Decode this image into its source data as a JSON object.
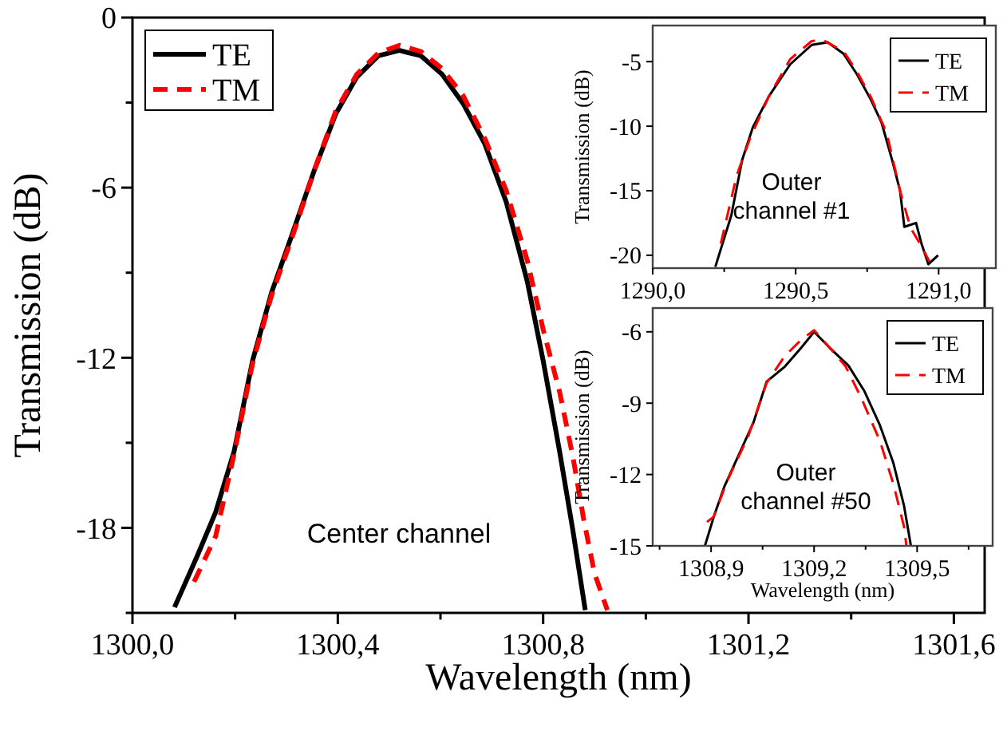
{
  "chart_data": [
    {
      "type": "line",
      "xlabel": "Wavelength (nm)",
      "ylabel": "Transmission (dB)",
      "xlim": [
        1300.0,
        1301.66
      ],
      "ylim": [
        -21,
        0
      ],
      "xticks": [
        {
          "value": 1300.0,
          "label": "1300,0"
        },
        {
          "value": 1300.2,
          "label": null
        },
        {
          "value": 1300.4,
          "label": "1300,4"
        },
        {
          "value": 1300.6,
          "label": null
        },
        {
          "value": 1300.8,
          "label": "1300,8"
        },
        {
          "value": 1301.0,
          "label": null
        },
        {
          "value": 1301.2,
          "label": "1301,2"
        },
        {
          "value": 1301.4,
          "label": null
        },
        {
          "value": 1301.6,
          "label": "1301,6"
        }
      ],
      "yticks": [
        0,
        {
          "value": -3,
          "label": null
        },
        -6,
        {
          "value": -9,
          "label": null
        },
        -12,
        {
          "value": -15,
          "label": null
        },
        -18,
        {
          "value": -21,
          "label": null
        }
      ],
      "legend": "top left",
      "annotations": [
        "Center channel"
      ],
      "series": [
        {
          "name": "TE",
          "color": "#000000",
          "line_style": "solid",
          "x": [
            1300.082,
            1300.126,
            1300.162,
            1300.198,
            1300.234,
            1300.271,
            1300.312,
            1300.354,
            1300.396,
            1300.437,
            1300.479,
            1300.52,
            1300.562,
            1300.603,
            1300.644,
            1300.686,
            1300.728,
            1300.769,
            1300.8,
            1300.832,
            1300.858,
            1300.882
          ],
          "values": [
            -20.8,
            -19.0,
            -17.45,
            -15.3,
            -12.1,
            -9.7,
            -7.6,
            -5.4,
            -3.4,
            -2.1,
            -1.35,
            -1.16,
            -1.35,
            -2.0,
            -3.03,
            -4.44,
            -6.5,
            -9.3,
            -12.1,
            -15.3,
            -18.1,
            -20.9
          ]
        },
        {
          "name": "TM",
          "color": "#ff0000",
          "line_style": "dashed",
          "x": [
            1300.12,
            1300.162,
            1300.198,
            1300.234,
            1300.271,
            1300.312,
            1300.354,
            1300.396,
            1300.437,
            1300.479,
            1300.52,
            1300.562,
            1300.603,
            1300.644,
            1300.686,
            1300.728,
            1300.769,
            1300.8,
            1300.832,
            1300.858,
            1300.879,
            1300.9,
            1300.925
          ],
          "values": [
            -19.9,
            -18.3,
            -15.4,
            -12.2,
            -9.8,
            -7.7,
            -5.4,
            -3.3,
            -2.0,
            -1.25,
            -0.98,
            -1.2,
            -1.8,
            -2.75,
            -4.25,
            -6.1,
            -8.56,
            -11.0,
            -13.2,
            -15.5,
            -17.7,
            -19.6,
            -20.9
          ]
        }
      ]
    },
    {
      "type": "line",
      "ylabel": "Transmission (dB)",
      "xlim": [
        1290.0,
        1291.2
      ],
      "ylim": [
        -21,
        -2.2
      ],
      "xticks": [
        {
          "value": 1290.0,
          "label": "1290,0"
        },
        {
          "value": 1290.25,
          "label": null
        },
        {
          "value": 1290.5,
          "label": "1290,5"
        },
        {
          "value": 1290.75,
          "label": null
        },
        {
          "value": 1291.0,
          "label": "1291,0"
        }
      ],
      "yticks": [
        -5,
        -10,
        -15,
        -20
      ],
      "legend": "top right",
      "annotations": [
        "Outer\nchannel #1"
      ],
      "series": [
        {
          "name": "TE",
          "color": "#000000",
          "line_style": "solid",
          "x": [
            1290.219,
            1290.275,
            1290.313,
            1290.35,
            1290.406,
            1290.481,
            1290.556,
            1290.612,
            1290.668,
            1290.715,
            1290.762,
            1290.8,
            1290.837,
            1290.865,
            1290.88,
            1290.921,
            1290.94,
            1290.964,
            1290.998
          ],
          "values": [
            -20.9,
            -16.9,
            -12.6,
            -10.1,
            -7.7,
            -5.2,
            -3.7,
            -3.5,
            -4.4,
            -6.0,
            -7.9,
            -9.7,
            -12.6,
            -15.0,
            -17.8,
            -17.5,
            -19.1,
            -20.7,
            -20.0
          ]
        },
        {
          "name": "TM",
          "color": "#ff0000",
          "line_style": "dashed",
          "x": [
            1290.238,
            1290.294,
            1290.341,
            1290.406,
            1290.481,
            1290.556,
            1290.593,
            1290.668,
            1290.715,
            1290.762,
            1290.818,
            1290.865,
            1290.902,
            1290.94,
            1290.968
          ],
          "values": [
            -19.1,
            -13.8,
            -10.9,
            -7.7,
            -4.8,
            -3.4,
            -3.3,
            -4.2,
            -5.8,
            -7.7,
            -10.5,
            -15.0,
            -17.9,
            -19.3,
            -20.5
          ]
        }
      ]
    },
    {
      "type": "line",
      "xlabel": "Wavelength (nm)",
      "ylabel": "Transmission (dB)",
      "xlim": [
        1308.73,
        1309.72
      ],
      "ylim": [
        -15,
        -5
      ],
      "xticks": [
        {
          "value": 1308.75,
          "label": null
        },
        {
          "value": 1308.9,
          "label": "1308,9"
        },
        {
          "value": 1309.05,
          "label": null
        },
        {
          "value": 1309.2,
          "label": "1309,2"
        },
        {
          "value": 1309.35,
          "label": null
        },
        {
          "value": 1309.5,
          "label": "1309,5"
        },
        {
          "value": 1309.65,
          "label": null
        }
      ],
      "yticks": [
        -6,
        -9,
        -12,
        -15
      ],
      "legend": "top right",
      "annotations": [
        "Outer\nchannel #50"
      ],
      "series": [
        {
          "name": "TE",
          "color": "#000000",
          "line_style": "solid",
          "x": [
            1308.882,
            1308.908,
            1308.938,
            1308.977,
            1309.023,
            1309.062,
            1309.115,
            1309.162,
            1309.2,
            1309.246,
            1309.3,
            1309.346,
            1309.392,
            1309.431,
            1309.462,
            1309.482
          ],
          "values": [
            -15.0,
            -13.77,
            -12.53,
            -11.29,
            -9.83,
            -8.09,
            -7.46,
            -6.68,
            -6.0,
            -6.68,
            -7.42,
            -8.48,
            -9.94,
            -11.52,
            -13.32,
            -15.0
          ]
        },
        {
          "name": "TM",
          "color": "#ff0000",
          "line_style": "dashed",
          "x": [
            1308.888,
            1308.908,
            1308.946,
            1309.008,
            1309.062,
            1309.115,
            1309.162,
            1309.2,
            1309.246,
            1309.292,
            1309.338,
            1309.392,
            1309.431,
            1309.462,
            1309.469
          ],
          "values": [
            -14.0,
            -13.77,
            -12.3,
            -10.4,
            -8.14,
            -7.01,
            -6.34,
            -5.93,
            -6.68,
            -7.46,
            -8.8,
            -10.6,
            -12.4,
            -14.2,
            -15.0
          ]
        }
      ]
    }
  ]
}
